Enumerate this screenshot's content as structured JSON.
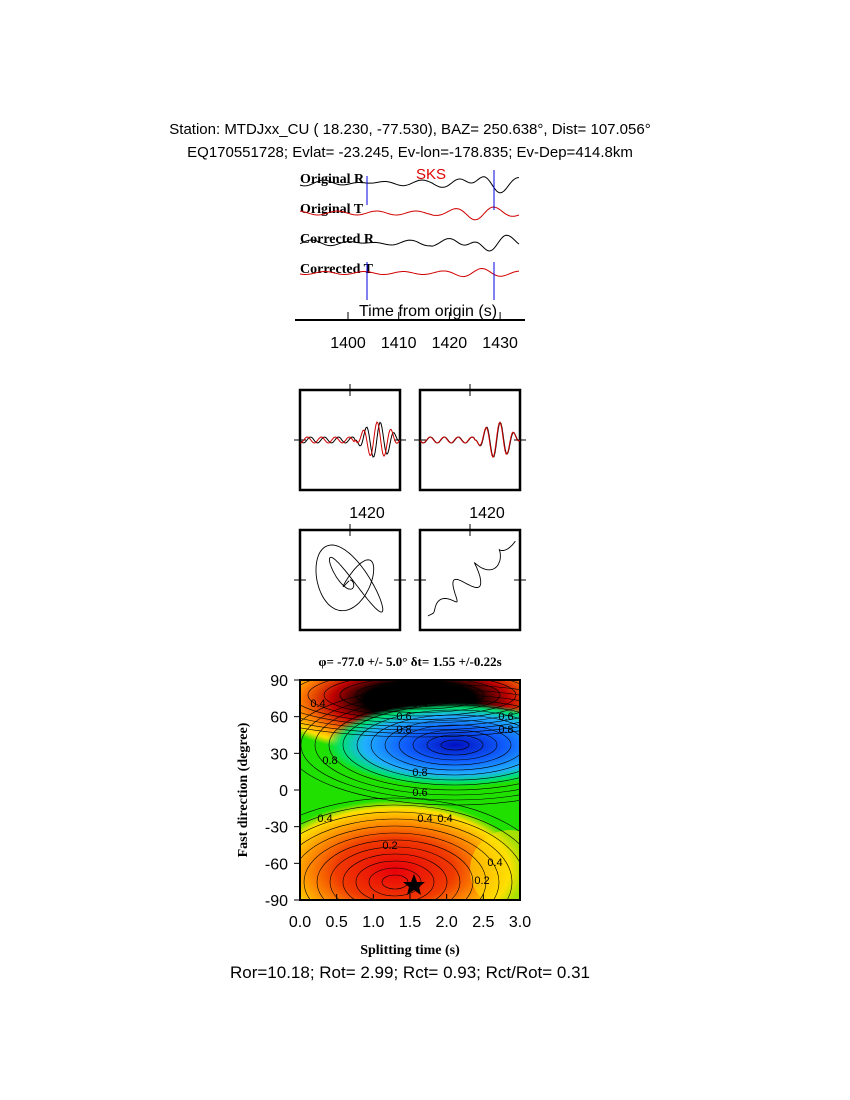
{
  "header": {
    "line1": "Station: MTDJxx_CU (  18.230,  -77.530), BAZ=  250.638°, Dist=  107.056°",
    "line2": "EQ170551728; Evlat= -23.245, Ev-lon=-178.835; Ev-Dep=414.8km"
  },
  "traces": {
    "labels": [
      "Original R",
      "Original T",
      "Corrected R",
      "Corrected T"
    ],
    "phase": "SKS",
    "xlabel": "Time from origin (s)",
    "xticks": [
      1400,
      1410,
      1420,
      1430
    ]
  },
  "zoom": {
    "xticks": [
      1420,
      1420
    ]
  },
  "grid": {
    "title": "φ= -77.0 +/- 5.0° δt= 1.55 +/-0.22s",
    "xlabel": "Splitting time (s)",
    "ylabel": "Fast direction (degree)",
    "xticks": [
      {
        "value": 0,
        "label": "0.0"
      },
      {
        "value": 0.5,
        "label": "0.5"
      },
      {
        "value": 1,
        "label": "1.0"
      },
      {
        "value": 1.5,
        "label": "1.5"
      },
      {
        "value": 2,
        "label": "2.0"
      },
      {
        "value": 2.5,
        "label": "2.5"
      },
      {
        "value": 3,
        "label": "3.0"
      }
    ],
    "yticks": [
      90,
      60,
      30,
      0,
      -30,
      -60,
      -90
    ],
    "contour_labels": [
      "0.2",
      "0.4",
      "0.4",
      "0.6",
      "0.6",
      "0.8",
      "0.8",
      "0.6",
      "0.8",
      "0.4",
      "0.4",
      "0.2",
      "0.4",
      "0.2",
      "0.8",
      "0.4"
    ]
  },
  "footer": "Ror=10.18; Rot= 2.99; Rct= 0.93; Rct/Rot= 0.31"
}
